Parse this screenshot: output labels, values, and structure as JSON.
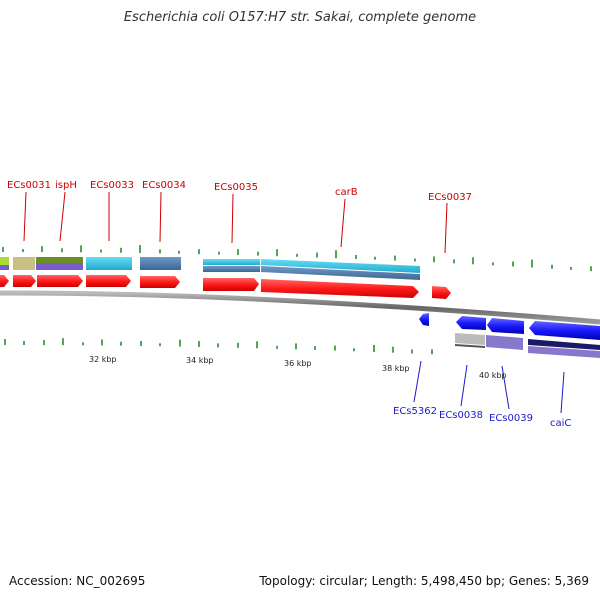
{
  "title": "Escherichia coli O157:H7 str. Sakai, complete genome",
  "accession": "Accession: NC_002695",
  "summary": "Topology: circular; Length: 5,498,450 bp; Genes: 5,369",
  "ticks": [
    "32 kbp",
    "34 kbp",
    "36 kbp",
    "38 kbp",
    "40 kbp"
  ],
  "top_genes": [
    "ECs0031",
    "ispH",
    "ECs0033",
    "ECs0034",
    "ECs0035",
    "carB",
    "ECs0037"
  ],
  "bottom_genes": [
    "ECs5362",
    "ECs0038",
    "ECs0039",
    "caiC"
  ],
  "colors": {
    "forward_cds": "#ff1a1a",
    "reverse_cds": "#1a1aff",
    "label_forward": "#cc0000",
    "label_reverse": "#1a1acc",
    "backbone": "#888888",
    "gc_tick": "#2e8b2e",
    "cog_cyan": "#33ccee",
    "cog_steel": "#4a7aaa",
    "cog_olive": "#6b8e23",
    "cog_khaki": "#c8c080",
    "cog_purple": "#7b5ccc",
    "cog_lime": "#aadd33",
    "cog_grey": "#bbbbbb",
    "cog_navy": "#1a1a66",
    "cog_lavender": "#8878cc"
  }
}
